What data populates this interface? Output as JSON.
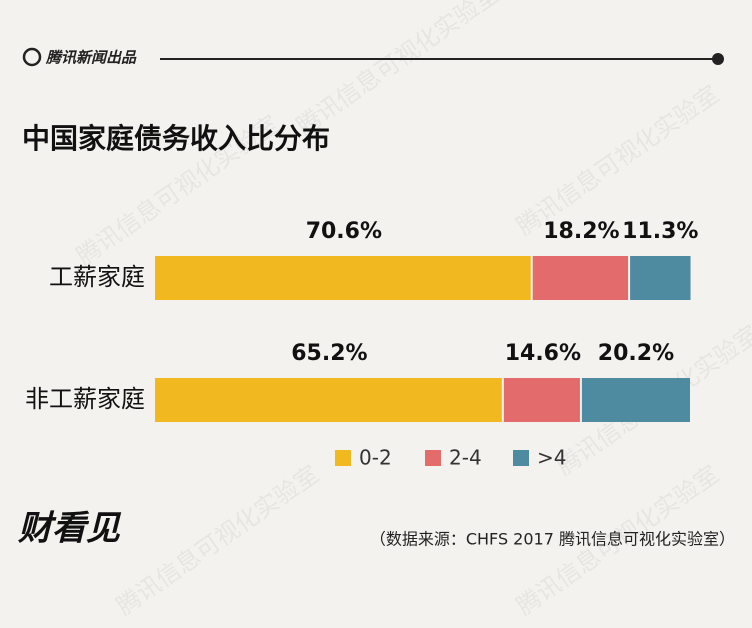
{
  "header": {
    "brand": "腾讯新闻出品"
  },
  "chart_data": {
    "type": "stacked-bar-horizontal",
    "title": "中国家庭债务收入比分布",
    "categories": [
      "工薪家庭",
      "非工薪家庭"
    ],
    "series": [
      {
        "name": "0-2",
        "color": "#f2b81f",
        "values": [
          70.6,
          65.2
        ],
        "value_labels": [
          "70.6%",
          "65.2%"
        ]
      },
      {
        "name": "2-4",
        "color": "#e46b6b",
        "values": [
          18.2,
          14.6
        ],
        "value_labels": [
          "18.2%",
          "14.6%"
        ]
      },
      {
        "name": ">4",
        "color": "#4f8ba0",
        "values": [
          11.3,
          20.2
        ],
        "value_labels": [
          "11.3%",
          "20.2%"
        ]
      }
    ],
    "xlim": [
      0,
      100
    ],
    "legend": "bottom"
  },
  "footer": {
    "source": "（数据来源：CHFS 2017  腾讯信息可视化实验室）",
    "logo": "财看见"
  },
  "watermark": "腾讯信息可视化实验室"
}
